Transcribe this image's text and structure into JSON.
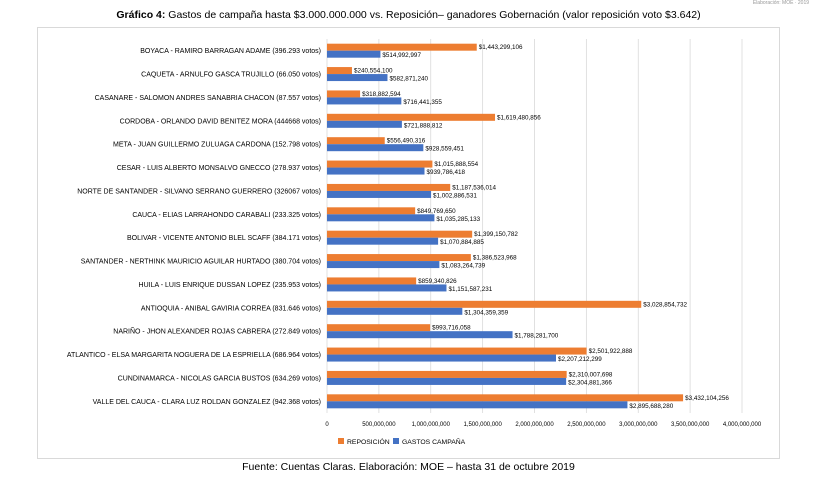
{
  "corner_note": "Elaboración: MOE · 2019",
  "title_prefix": "Gráfico 4:",
  "title_text": " Gastos de campaña hasta $3.000.000.000 vs. Reposición– ganadores Gobernación (valor reposición voto $3.642)",
  "source": "Fuente: Cuentas Claras. Elaboración: MOE – hasta 31 de octubre 2019",
  "colors": {
    "reposicion": "#ED7D31",
    "gastos": "#4472C4",
    "grid": "#d9d9d9"
  },
  "chart_data": {
    "type": "bar",
    "orientation": "horizontal",
    "title": "Gastos de campaña hasta $3.000.000.000 vs. Reposición– ganadores Gobernación (valor reposición voto $3.642)",
    "xlim": [
      0,
      4000000000
    ],
    "xticks": [
      "0",
      "500,000,000",
      "1,000,000,000",
      "1,500,000,000",
      "2,000,000,000",
      "2,500,000,000",
      "3,000,000,000",
      "3,500,000,000",
      "4,000,000,000"
    ],
    "grid": true,
    "legend_position": "bottom",
    "categories": [
      "BOYACA - RAMIRO BARRAGAN ADAME (396.293 votos)",
      "CAQUETA - ARNULFO GASCA TRUJILLO (66.050 votos)",
      "CASANARE - SALOMON ANDRES SANABRIA CHACON (87.557 votos)",
      "CORDOBA - ORLANDO DAVID BENITEZ MORA (444668 votos)",
      "META - JUAN GUILLERMO ZULUAGA CARDONA (152.798 votos)",
      "CESAR - LUIS ALBERTO MONSALVO GNECCO (278.937 votos)",
      "NORTE DE SANTANDER - SILVANO SERRANO GUERRERO (326067 votos)",
      "CAUCA - ELIAS LARRAHONDO CARABALI (233.325 votos)",
      "BOLIVAR - VICENTE ANTONIO BLEL SCAFF (384.171 votos)",
      "SANTANDER - NERTHINK MAURICIO AGUILAR HURTADO (380.704 votos)",
      "HUILA - LUIS ENRIQUE DUSSAN LOPEZ (235.953 votos)",
      "ANTIOQUIA - ANIBAL GAVIRIA CORREA (831.646 votos)",
      "NARIÑO - JHON ALEXANDER ROJAS CABRERA (272.849 votos)",
      "ATLANTICO - ELSA MARGARITA NOGUERA DE LA ESPRIELLA (686.964 votos)",
      "CUNDINAMARCA - NICOLAS GARCIA BUSTOS (634.269 votos)",
      "VALLE DEL CAUCA - CLARA LUZ ROLDAN GONZALEZ (942.368 votos)"
    ],
    "series": [
      {
        "name": "REPOSICIÓN",
        "values": [
          1443299106,
          240554100,
          318882594,
          1619480856,
          556490316,
          1015888554,
          1187536014,
          849769650,
          1399150782,
          1386523968,
          859340826,
          3028854732,
          993716058,
          2501922888,
          2310007698,
          3432104256
        ],
        "labels": [
          "$1,443,299,106",
          "$240,554,100",
          "$318,882,594",
          "$1,619,480,856",
          "$556,490,316",
          "$1,015,888,554",
          "$1,187,536,014",
          "$849,769,650",
          "$1,399,150,782",
          "$1,386,523,968",
          "$859,340,826",
          "$3,028,854,732",
          "$993,716,058",
          "$2,501,922,888",
          "$2,310,007,698",
          "$3,432,104,256"
        ]
      },
      {
        "name": "GASTOS CAMPAÑA",
        "values": [
          514992997,
          582871240,
          716441355,
          721888812,
          928559451,
          939786418,
          1002886531,
          1035285133,
          1070884885,
          1083264739,
          1151587231,
          1304359359,
          1788281700,
          2207212299,
          2304881366,
          2895688280
        ],
        "labels": [
          "$514,992,997",
          "$582,871,240",
          "$716,441,355",
          "$721,888,812",
          "$928,559,451",
          "$939,786,418",
          "$1,002,886,531",
          "$1,035,285,133",
          "$1,070,884,885",
          "$1,083,264,739",
          "$1,151,587,231",
          "$1,304,359,359",
          "$1,788,281,700",
          "$2,207,212,299",
          "$2,304,881,366",
          "$2,895,688,280"
        ]
      }
    ]
  }
}
